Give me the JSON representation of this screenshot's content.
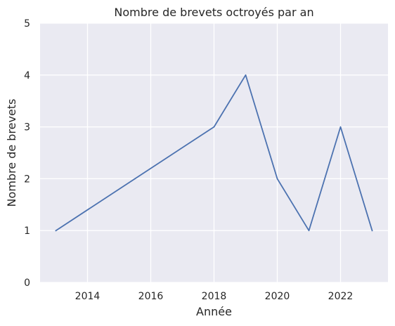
{
  "chart_data": {
    "type": "line",
    "title": "Nombre de brevets octroyés par an",
    "xlabel": "Année",
    "ylabel": "Nombre de brevets",
    "x": [
      2013,
      2018,
      2019,
      2020,
      2021,
      2022,
      2023
    ],
    "series": [
      {
        "values": [
          1,
          3,
          4,
          2,
          1,
          3,
          1
        ]
      }
    ],
    "xlim": [
      2012.5,
      2023.5
    ],
    "ylim": [
      0,
      5
    ],
    "xticks": [
      2014,
      2016,
      2018,
      2020,
      2022
    ],
    "yticks": [
      0,
      1,
      2,
      3,
      4,
      5
    ],
    "grid": true,
    "line_color": "#4c72b0",
    "background_color": "#eaeaf2"
  }
}
